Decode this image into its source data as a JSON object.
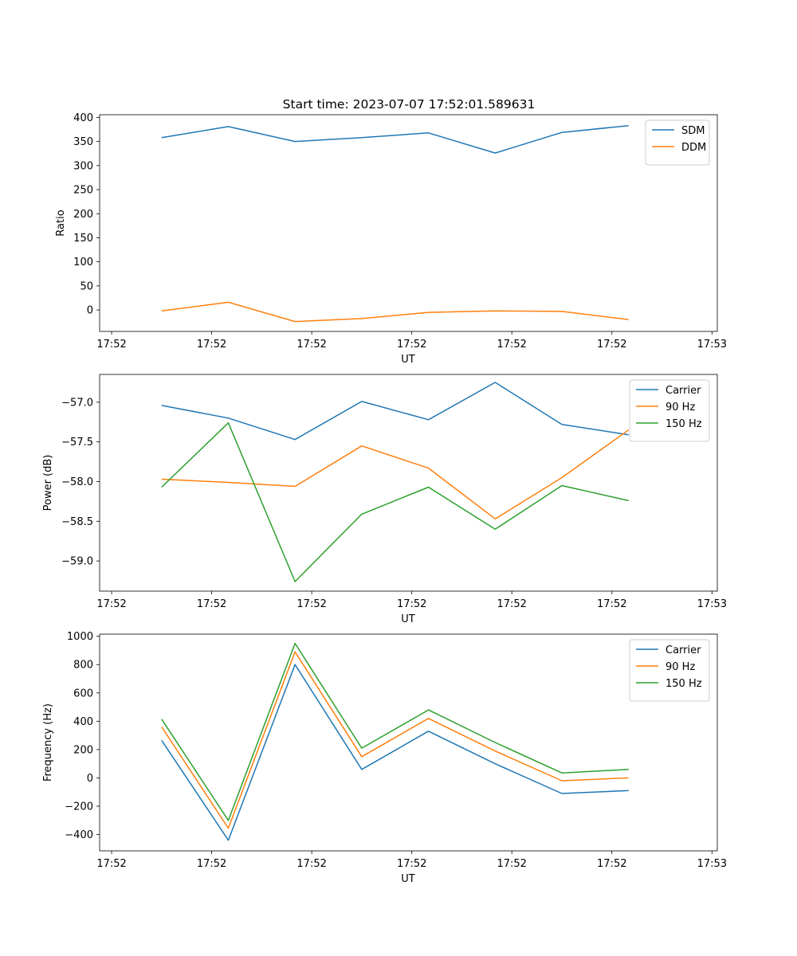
{
  "title": "Start time: 2023-07-07 17:52:01.589631",
  "colors": {
    "c0": "#1f77b4",
    "c1": "#ff7f0e",
    "c2": "#2ca02c"
  },
  "chart_data": [
    {
      "type": "line",
      "xlabel": "UT",
      "ylabel": "Ratio",
      "x": [
        1,
        2,
        3,
        4,
        5,
        6,
        7,
        8
      ],
      "xlim": [
        0.07,
        9.33
      ],
      "xticks": [
        0.25,
        1.75,
        3.25,
        4.75,
        6.25,
        7.75,
        9.25
      ],
      "xtick_labels": [
        "17:52",
        "17:52",
        "17:52",
        "17:52",
        "17:52",
        "17:52",
        "17:53"
      ],
      "ylim": [
        -44.6,
        405.7
      ],
      "yticks": [
        0,
        50,
        100,
        150,
        200,
        250,
        300,
        350,
        400
      ],
      "ytick_labels": [
        "0",
        "50",
        "100",
        "150",
        "200",
        "250",
        "300",
        "350",
        "400"
      ],
      "legend": "top-right",
      "series": [
        {
          "name": "SDM",
          "color": "#1f77b4",
          "values": [
            358,
            381,
            350,
            358,
            368,
            326,
            369,
            383
          ]
        },
        {
          "name": "DDM",
          "color": "#ff7f0e",
          "values": [
            -2,
            16,
            -24,
            -18,
            -5,
            -2,
            -3,
            -20
          ]
        }
      ]
    },
    {
      "type": "line",
      "xlabel": "UT",
      "ylabel": "Power (dB)",
      "x": [
        1,
        2,
        3,
        4,
        5,
        6,
        7,
        8
      ],
      "xlim": [
        0.07,
        9.33
      ],
      "xticks": [
        0.25,
        1.75,
        3.25,
        4.75,
        6.25,
        7.75,
        9.25
      ],
      "xtick_labels": [
        "17:52",
        "17:52",
        "17:52",
        "17:52",
        "17:52",
        "17:52",
        "17:53"
      ],
      "ylim": [
        -59.38,
        -56.65
      ],
      "yticks": [
        -59.0,
        -58.5,
        -58.0,
        -57.5,
        -57.0
      ],
      "ytick_labels": [
        "−59.0",
        "−58.5",
        "−58.0",
        "−57.5",
        "−57.0"
      ],
      "legend": "top-right",
      "series": [
        {
          "name": "Carrier",
          "color": "#1f77b4",
          "values": [
            -57.04,
            -57.2,
            -57.47,
            -56.99,
            -57.22,
            -56.75,
            -57.28,
            -57.41
          ]
        },
        {
          "name": "90 Hz",
          "color": "#ff7f0e",
          "values": [
            -57.97,
            -58.01,
            -58.06,
            -57.55,
            -57.83,
            -58.47,
            -57.95,
            -57.35
          ]
        },
        {
          "name": "150 Hz",
          "color": "#2ca02c",
          "values": [
            -58.07,
            -57.26,
            -59.26,
            -58.41,
            -58.07,
            -58.6,
            -58.05,
            -58.24
          ]
        }
      ]
    },
    {
      "type": "line",
      "xlabel": "UT",
      "ylabel": "Frequency (Hz)",
      "x": [
        1,
        2,
        3,
        4,
        5,
        6,
        7,
        8
      ],
      "xlim": [
        0.07,
        9.33
      ],
      "xticks": [
        0.25,
        1.75,
        3.25,
        4.75,
        6.25,
        7.75,
        9.25
      ],
      "xtick_labels": [
        "17:52",
        "17:52",
        "17:52",
        "17:52",
        "17:52",
        "17:52",
        "17:53"
      ],
      "ylim": [
        -515,
        1015
      ],
      "yticks": [
        -400,
        -200,
        0,
        200,
        400,
        600,
        800,
        1000
      ],
      "ytick_labels": [
        "−400",
        "−200",
        "0",
        "200",
        "400",
        "600",
        "800",
        "1000"
      ],
      "legend": "top-right",
      "series": [
        {
          "name": "Carrier",
          "color": "#1f77b4",
          "values": [
            265,
            -440,
            800,
            60,
            330,
            100,
            -110,
            -90
          ]
        },
        {
          "name": "90 Hz",
          "color": "#ff7f0e",
          "values": [
            360,
            -355,
            890,
            150,
            420,
            190,
            -20,
            0
          ]
        },
        {
          "name": "150 Hz",
          "color": "#2ca02c",
          "values": [
            415,
            -300,
            950,
            210,
            480,
            250,
            35,
            60
          ]
        }
      ]
    }
  ]
}
